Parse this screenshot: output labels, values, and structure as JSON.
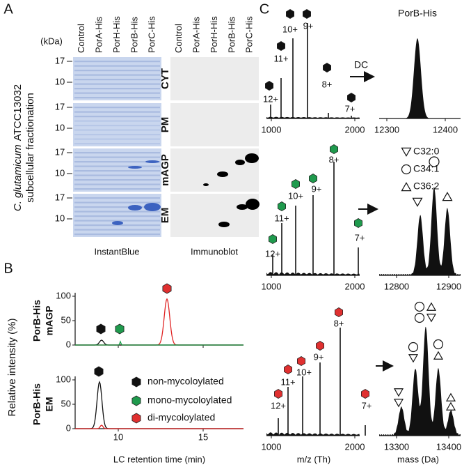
{
  "panels": {
    "a": {
      "label": "A",
      "unit": "(kDa)",
      "lanes": [
        "Control",
        "PorA-His",
        "PorH-His",
        "PorB-His",
        "PorC-His"
      ],
      "rows": [
        "CYT",
        "PM",
        "mAGP",
        "EM"
      ],
      "markers": [
        "17",
        "10"
      ],
      "species": "C. glutamicum",
      "strain": "ATCC13032",
      "fractionation": "subcellular fractionation",
      "blots": [
        "InstantBlue",
        "Immunoblot"
      ]
    },
    "b": {
      "label": "B",
      "y_label": "Relative intensity (%)",
      "x_label": "LC retention time (min)",
      "samples": [
        [
          "PorB-His",
          "mAGP"
        ],
        [
          "PorB-His",
          "EM"
        ]
      ],
      "yticks": [
        "100",
        "50",
        "0"
      ],
      "xticks": [
        "10",
        "15"
      ],
      "legend": [
        "non-mycoloylated",
        "mono-mycoloylated",
        "di-mycoloylated"
      ]
    },
    "c": {
      "label": "C",
      "protein": "PorB-His",
      "arrow_label": "DC",
      "charges": [
        "12+",
        "11+",
        "10+",
        "9+",
        "8+",
        "7+"
      ],
      "mz_ticks": [
        "1000",
        "2000"
      ],
      "mass_ticks": [
        [
          "12300",
          "12400"
        ],
        [
          "12800",
          "12900"
        ],
        [
          "13300",
          "13400"
        ]
      ],
      "lipids": [
        "C32:0",
        "C34:1",
        "C36:2"
      ],
      "mz_label": "m/z (Th)",
      "mass_label": "mass (Da)"
    }
  }
}
